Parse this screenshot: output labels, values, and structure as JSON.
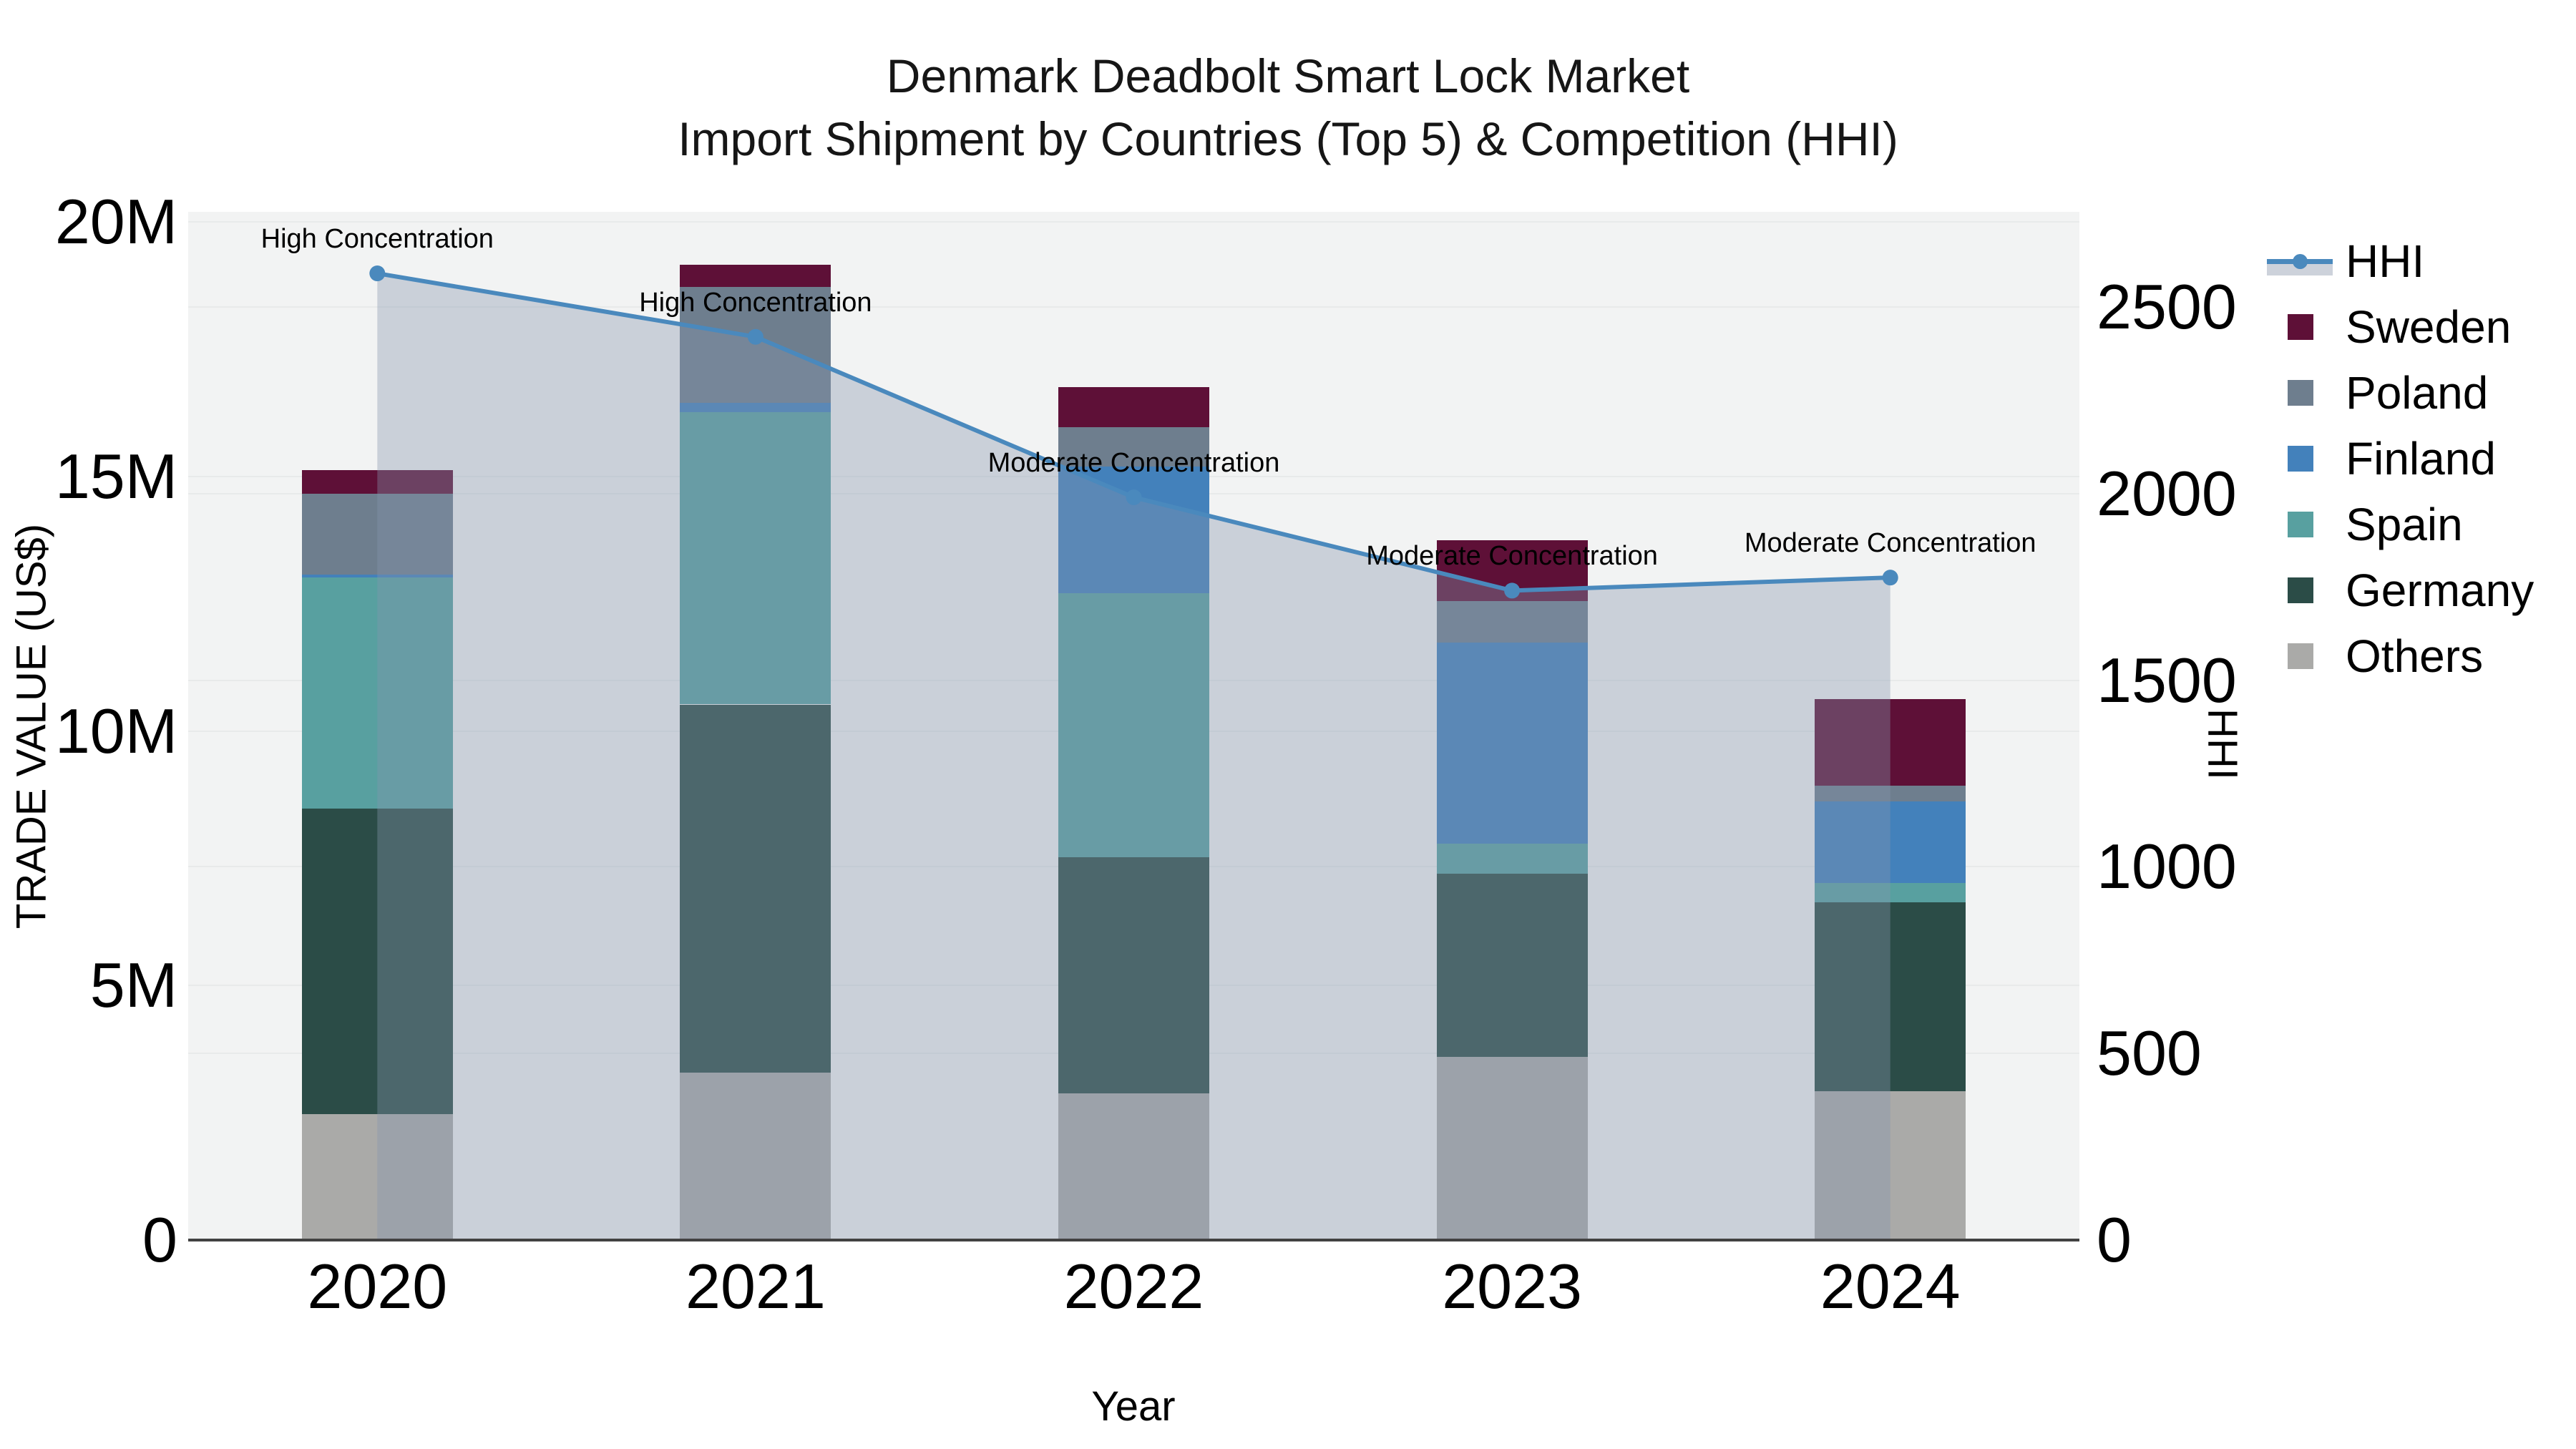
{
  "title": {
    "line1": "Denmark Deadbolt Smart Lock Market",
    "line2": "Import Shipment by Countries (Top 5) & Competition (HHI)"
  },
  "chart_data": {
    "type": "combo",
    "bar_mode": "stacked",
    "categories": [
      "2020",
      "2021",
      "2022",
      "2023",
      "2024"
    ],
    "x_axis_label": "Year",
    "y_left": {
      "label": "TRADE VALUE (US$)",
      "unit": "M US$",
      "range": [
        0,
        20
      ],
      "tick_values": [
        0,
        5,
        10,
        15,
        20
      ],
      "tick_labels": [
        "0",
        "5M",
        "10M",
        "15M",
        "20M"
      ]
    },
    "y_right": {
      "label": "HHI",
      "range": [
        0,
        2756
      ],
      "tick_values": [
        0,
        500,
        1000,
        1500,
        2000,
        2500
      ],
      "tick_labels": [
        "0",
        "500",
        "1000",
        "1500",
        "2000",
        "2500"
      ]
    },
    "series": [
      {
        "name": "Others",
        "color": "#aaaaa8",
        "values": [
          2.47,
          3.29,
          2.88,
          3.6,
          2.92
        ]
      },
      {
        "name": "Germany",
        "color": "#2b4c47",
        "values": [
          6.0,
          7.23,
          4.64,
          3.59,
          3.71
        ]
      },
      {
        "name": "Spain",
        "color": "#58a0a0",
        "values": [
          4.55,
          5.74,
          5.19,
          0.59,
          0.38
        ]
      },
      {
        "name": "Finland",
        "color": "#4381bb",
        "values": [
          0.05,
          0.18,
          2.49,
          3.95,
          1.6
        ]
      },
      {
        "name": "Poland",
        "color": "#6e7e8e",
        "values": [
          1.59,
          2.28,
          0.76,
          0.82,
          0.31
        ]
      },
      {
        "name": "Sweden",
        "color": "#5e1037",
        "values": [
          0.46,
          0.43,
          0.8,
          1.2,
          1.7
        ]
      }
    ],
    "bar_totals": [
      15.12,
      19.15,
      16.76,
      13.75,
      10.62
    ],
    "line": {
      "name": "HHI",
      "color": "#4a89bd",
      "fill_color": "rgba(134,149,174,0.37)",
      "values": [
        2590,
        2420,
        1990,
        1740,
        1775
      ]
    },
    "annotations": [
      "High Concentration",
      "High Concentration",
      "Moderate Concentration",
      "Moderate Concentration",
      "Moderate Concentration"
    ],
    "grid": true,
    "plot_background": "#f2f3f3",
    "legend_position": "right"
  },
  "legend": {
    "entries": [
      {
        "name": "HHI",
        "kind": "line"
      },
      {
        "name": "Sweden",
        "kind": "swatch",
        "color": "#5e1037"
      },
      {
        "name": "Poland",
        "kind": "swatch",
        "color": "#6e7e8e"
      },
      {
        "name": "Finland",
        "kind": "swatch",
        "color": "#4381bb"
      },
      {
        "name": "Spain",
        "kind": "swatch",
        "color": "#58a0a0"
      },
      {
        "name": "Germany",
        "kind": "swatch",
        "color": "#2b4c47"
      },
      {
        "name": "Others",
        "kind": "swatch",
        "color": "#aaaaa8"
      }
    ]
  }
}
